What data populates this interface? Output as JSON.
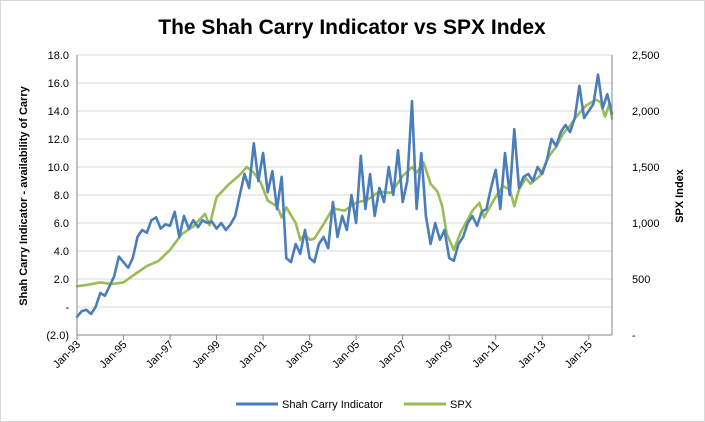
{
  "chart_data": {
    "type": "line",
    "title": "The Shah Carry Indicator vs SPX Index",
    "ylabel_left": "Shah Carry Indicator - availability of Carry",
    "ylabel_right": "SPX Index",
    "x_tick_labels": [
      "Jan-93",
      "Jan-95",
      "Jan-97",
      "Jan-99",
      "Jan-01",
      "Jan-03",
      "Jan-05",
      "Jan-07",
      "Jan-09",
      "Jan-11",
      "Jan-13",
      "Jan-15"
    ],
    "x_tick_values": [
      1993,
      1995,
      1997,
      1999,
      2001,
      2003,
      2005,
      2007,
      2009,
      2011,
      2013,
      2015
    ],
    "xlim": [
      1993,
      2016
    ],
    "ylim_left": [
      -2,
      18
    ],
    "yticks_left": [
      -2,
      0,
      2,
      4,
      6,
      8,
      10,
      12,
      14,
      16,
      18
    ],
    "ytick_labels_left": [
      "(2.0)",
      "-",
      "2.0",
      "4.0",
      "6.0",
      "8.0",
      "10.0",
      "12.0",
      "14.0",
      "16.0",
      "18.0"
    ],
    "ylim_right": [
      0,
      2500
    ],
    "yticks_right": [
      0,
      500,
      1000,
      1500,
      2000,
      2500
    ],
    "ytick_labels_right": [
      "-",
      "500",
      "1,000",
      "1,500",
      "2,000",
      "2,500"
    ],
    "grid": true,
    "legend_position": "bottom",
    "series": [
      {
        "name": "Shah Carry Indicator",
        "axis": "left",
        "color": "#4a7ebb",
        "points": [
          [
            1993.0,
            -0.7
          ],
          [
            1993.2,
            -0.3
          ],
          [
            1993.4,
            -0.2
          ],
          [
            1993.6,
            -0.5
          ],
          [
            1993.8,
            0.0
          ],
          [
            1994.0,
            1.0
          ],
          [
            1994.2,
            0.8
          ],
          [
            1994.4,
            1.5
          ],
          [
            1994.6,
            2.2
          ],
          [
            1994.8,
            3.6
          ],
          [
            1995.0,
            3.2
          ],
          [
            1995.2,
            2.8
          ],
          [
            1995.4,
            3.5
          ],
          [
            1995.6,
            5.0
          ],
          [
            1995.8,
            5.5
          ],
          [
            1996.0,
            5.3
          ],
          [
            1996.2,
            6.2
          ],
          [
            1996.4,
            6.4
          ],
          [
            1996.6,
            5.6
          ],
          [
            1996.8,
            5.9
          ],
          [
            1997.0,
            5.8
          ],
          [
            1997.2,
            6.8
          ],
          [
            1997.4,
            5.0
          ],
          [
            1997.6,
            6.5
          ],
          [
            1997.8,
            5.6
          ],
          [
            1998.0,
            6.2
          ],
          [
            1998.2,
            5.7
          ],
          [
            1998.4,
            6.2
          ],
          [
            1998.6,
            6.0
          ],
          [
            1998.8,
            6.1
          ],
          [
            1999.0,
            5.6
          ],
          [
            1999.2,
            6.0
          ],
          [
            1999.4,
            5.5
          ],
          [
            1999.6,
            5.9
          ],
          [
            1999.8,
            6.5
          ],
          [
            2000.0,
            8.0
          ],
          [
            2000.2,
            9.5
          ],
          [
            2000.4,
            8.5
          ],
          [
            2000.6,
            11.7
          ],
          [
            2000.8,
            9.0
          ],
          [
            2001.0,
            11.0
          ],
          [
            2001.2,
            8.2
          ],
          [
            2001.4,
            9.7
          ],
          [
            2001.6,
            7.0
          ],
          [
            2001.8,
            9.3
          ],
          [
            2002.0,
            3.5
          ],
          [
            2002.2,
            3.2
          ],
          [
            2002.4,
            4.5
          ],
          [
            2002.6,
            3.8
          ],
          [
            2002.8,
            5.5
          ],
          [
            2003.0,
            3.5
          ],
          [
            2003.2,
            3.2
          ],
          [
            2003.4,
            4.5
          ],
          [
            2003.6,
            5.0
          ],
          [
            2003.8,
            4.2
          ],
          [
            2004.0,
            7.5
          ],
          [
            2004.2,
            5.0
          ],
          [
            2004.4,
            6.5
          ],
          [
            2004.6,
            5.5
          ],
          [
            2004.8,
            8.0
          ],
          [
            2005.0,
            6.0
          ],
          [
            2005.2,
            10.8
          ],
          [
            2005.4,
            7.0
          ],
          [
            2005.6,
            9.5
          ],
          [
            2005.8,
            6.5
          ],
          [
            2006.0,
            8.5
          ],
          [
            2006.2,
            7.5
          ],
          [
            2006.4,
            10.0
          ],
          [
            2006.6,
            8.0
          ],
          [
            2006.8,
            11.2
          ],
          [
            2007.0,
            7.5
          ],
          [
            2007.2,
            9.0
          ],
          [
            2007.4,
            14.7
          ],
          [
            2007.6,
            7.0
          ],
          [
            2007.8,
            11.0
          ],
          [
            2008.0,
            6.5
          ],
          [
            2008.2,
            4.5
          ],
          [
            2008.4,
            6.0
          ],
          [
            2008.6,
            4.8
          ],
          [
            2008.8,
            5.5
          ],
          [
            2009.0,
            3.5
          ],
          [
            2009.2,
            3.3
          ],
          [
            2009.4,
            4.5
          ],
          [
            2009.6,
            5.0
          ],
          [
            2009.8,
            6.0
          ],
          [
            2010.0,
            6.5
          ],
          [
            2010.2,
            5.8
          ],
          [
            2010.4,
            6.8
          ],
          [
            2010.6,
            7.0
          ],
          [
            2010.8,
            8.5
          ],
          [
            2011.0,
            9.8
          ],
          [
            2011.2,
            7.0
          ],
          [
            2011.4,
            11.0
          ],
          [
            2011.6,
            8.0
          ],
          [
            2011.8,
            12.7
          ],
          [
            2012.0,
            8.5
          ],
          [
            2012.2,
            9.3
          ],
          [
            2012.4,
            9.5
          ],
          [
            2012.6,
            9.0
          ],
          [
            2012.8,
            10.0
          ],
          [
            2013.0,
            9.5
          ],
          [
            2013.2,
            10.5
          ],
          [
            2013.4,
            12.0
          ],
          [
            2013.6,
            11.5
          ],
          [
            2013.8,
            12.5
          ],
          [
            2014.0,
            13.0
          ],
          [
            2014.2,
            12.5
          ],
          [
            2014.4,
            13.5
          ],
          [
            2014.6,
            15.8
          ],
          [
            2014.8,
            13.5
          ],
          [
            2015.0,
            14.0
          ],
          [
            2015.2,
            14.5
          ],
          [
            2015.4,
            16.6
          ],
          [
            2015.6,
            14.2
          ],
          [
            2015.8,
            15.2
          ],
          [
            2016.0,
            13.8
          ]
        ]
      },
      {
        "name": "SPX",
        "axis": "right",
        "color": "#9bbb59",
        "points": [
          [
            1993.0,
            435
          ],
          [
            1993.5,
            450
          ],
          [
            1994.0,
            470
          ],
          [
            1994.5,
            455
          ],
          [
            1995.0,
            470
          ],
          [
            1995.5,
            545
          ],
          [
            1996.0,
            615
          ],
          [
            1996.5,
            660
          ],
          [
            1997.0,
            760
          ],
          [
            1997.5,
            900
          ],
          [
            1998.0,
            970
          ],
          [
            1998.5,
            1080
          ],
          [
            1998.7,
            980
          ],
          [
            1999.0,
            1230
          ],
          [
            1999.5,
            1340
          ],
          [
            2000.0,
            1430
          ],
          [
            2000.3,
            1500
          ],
          [
            2000.6,
            1450
          ],
          [
            2000.9,
            1360
          ],
          [
            2001.2,
            1200
          ],
          [
            2001.6,
            1150
          ],
          [
            2001.8,
            1050
          ],
          [
            2002.0,
            1140
          ],
          [
            2002.4,
            1000
          ],
          [
            2002.6,
            850
          ],
          [
            2002.8,
            900
          ],
          [
            2003.0,
            850
          ],
          [
            2003.2,
            860
          ],
          [
            2003.6,
            990
          ],
          [
            2004.0,
            1130
          ],
          [
            2004.5,
            1110
          ],
          [
            2005.0,
            1180
          ],
          [
            2005.5,
            1210
          ],
          [
            2006.0,
            1280
          ],
          [
            2006.5,
            1270
          ],
          [
            2007.0,
            1420
          ],
          [
            2007.4,
            1500
          ],
          [
            2007.6,
            1450
          ],
          [
            2007.9,
            1540
          ],
          [
            2008.2,
            1350
          ],
          [
            2008.5,
            1280
          ],
          [
            2008.7,
            1150
          ],
          [
            2008.9,
            900
          ],
          [
            2009.2,
            760
          ],
          [
            2009.5,
            920
          ],
          [
            2010.0,
            1110
          ],
          [
            2010.3,
            1180
          ],
          [
            2010.5,
            1050
          ],
          [
            2010.9,
            1200
          ],
          [
            2011.3,
            1330
          ],
          [
            2011.6,
            1300
          ],
          [
            2011.8,
            1150
          ],
          [
            2012.0,
            1300
          ],
          [
            2012.3,
            1400
          ],
          [
            2012.5,
            1350
          ],
          [
            2012.9,
            1420
          ],
          [
            2013.3,
            1600
          ],
          [
            2013.6,
            1680
          ],
          [
            2013.9,
            1800
          ],
          [
            2014.2,
            1870
          ],
          [
            2014.5,
            1960
          ],
          [
            2014.9,
            2050
          ],
          [
            2015.3,
            2100
          ],
          [
            2015.5,
            2080
          ],
          [
            2015.7,
            1950
          ],
          [
            2015.9,
            2070
          ],
          [
            2016.0,
            1930
          ]
        ]
      }
    ]
  }
}
